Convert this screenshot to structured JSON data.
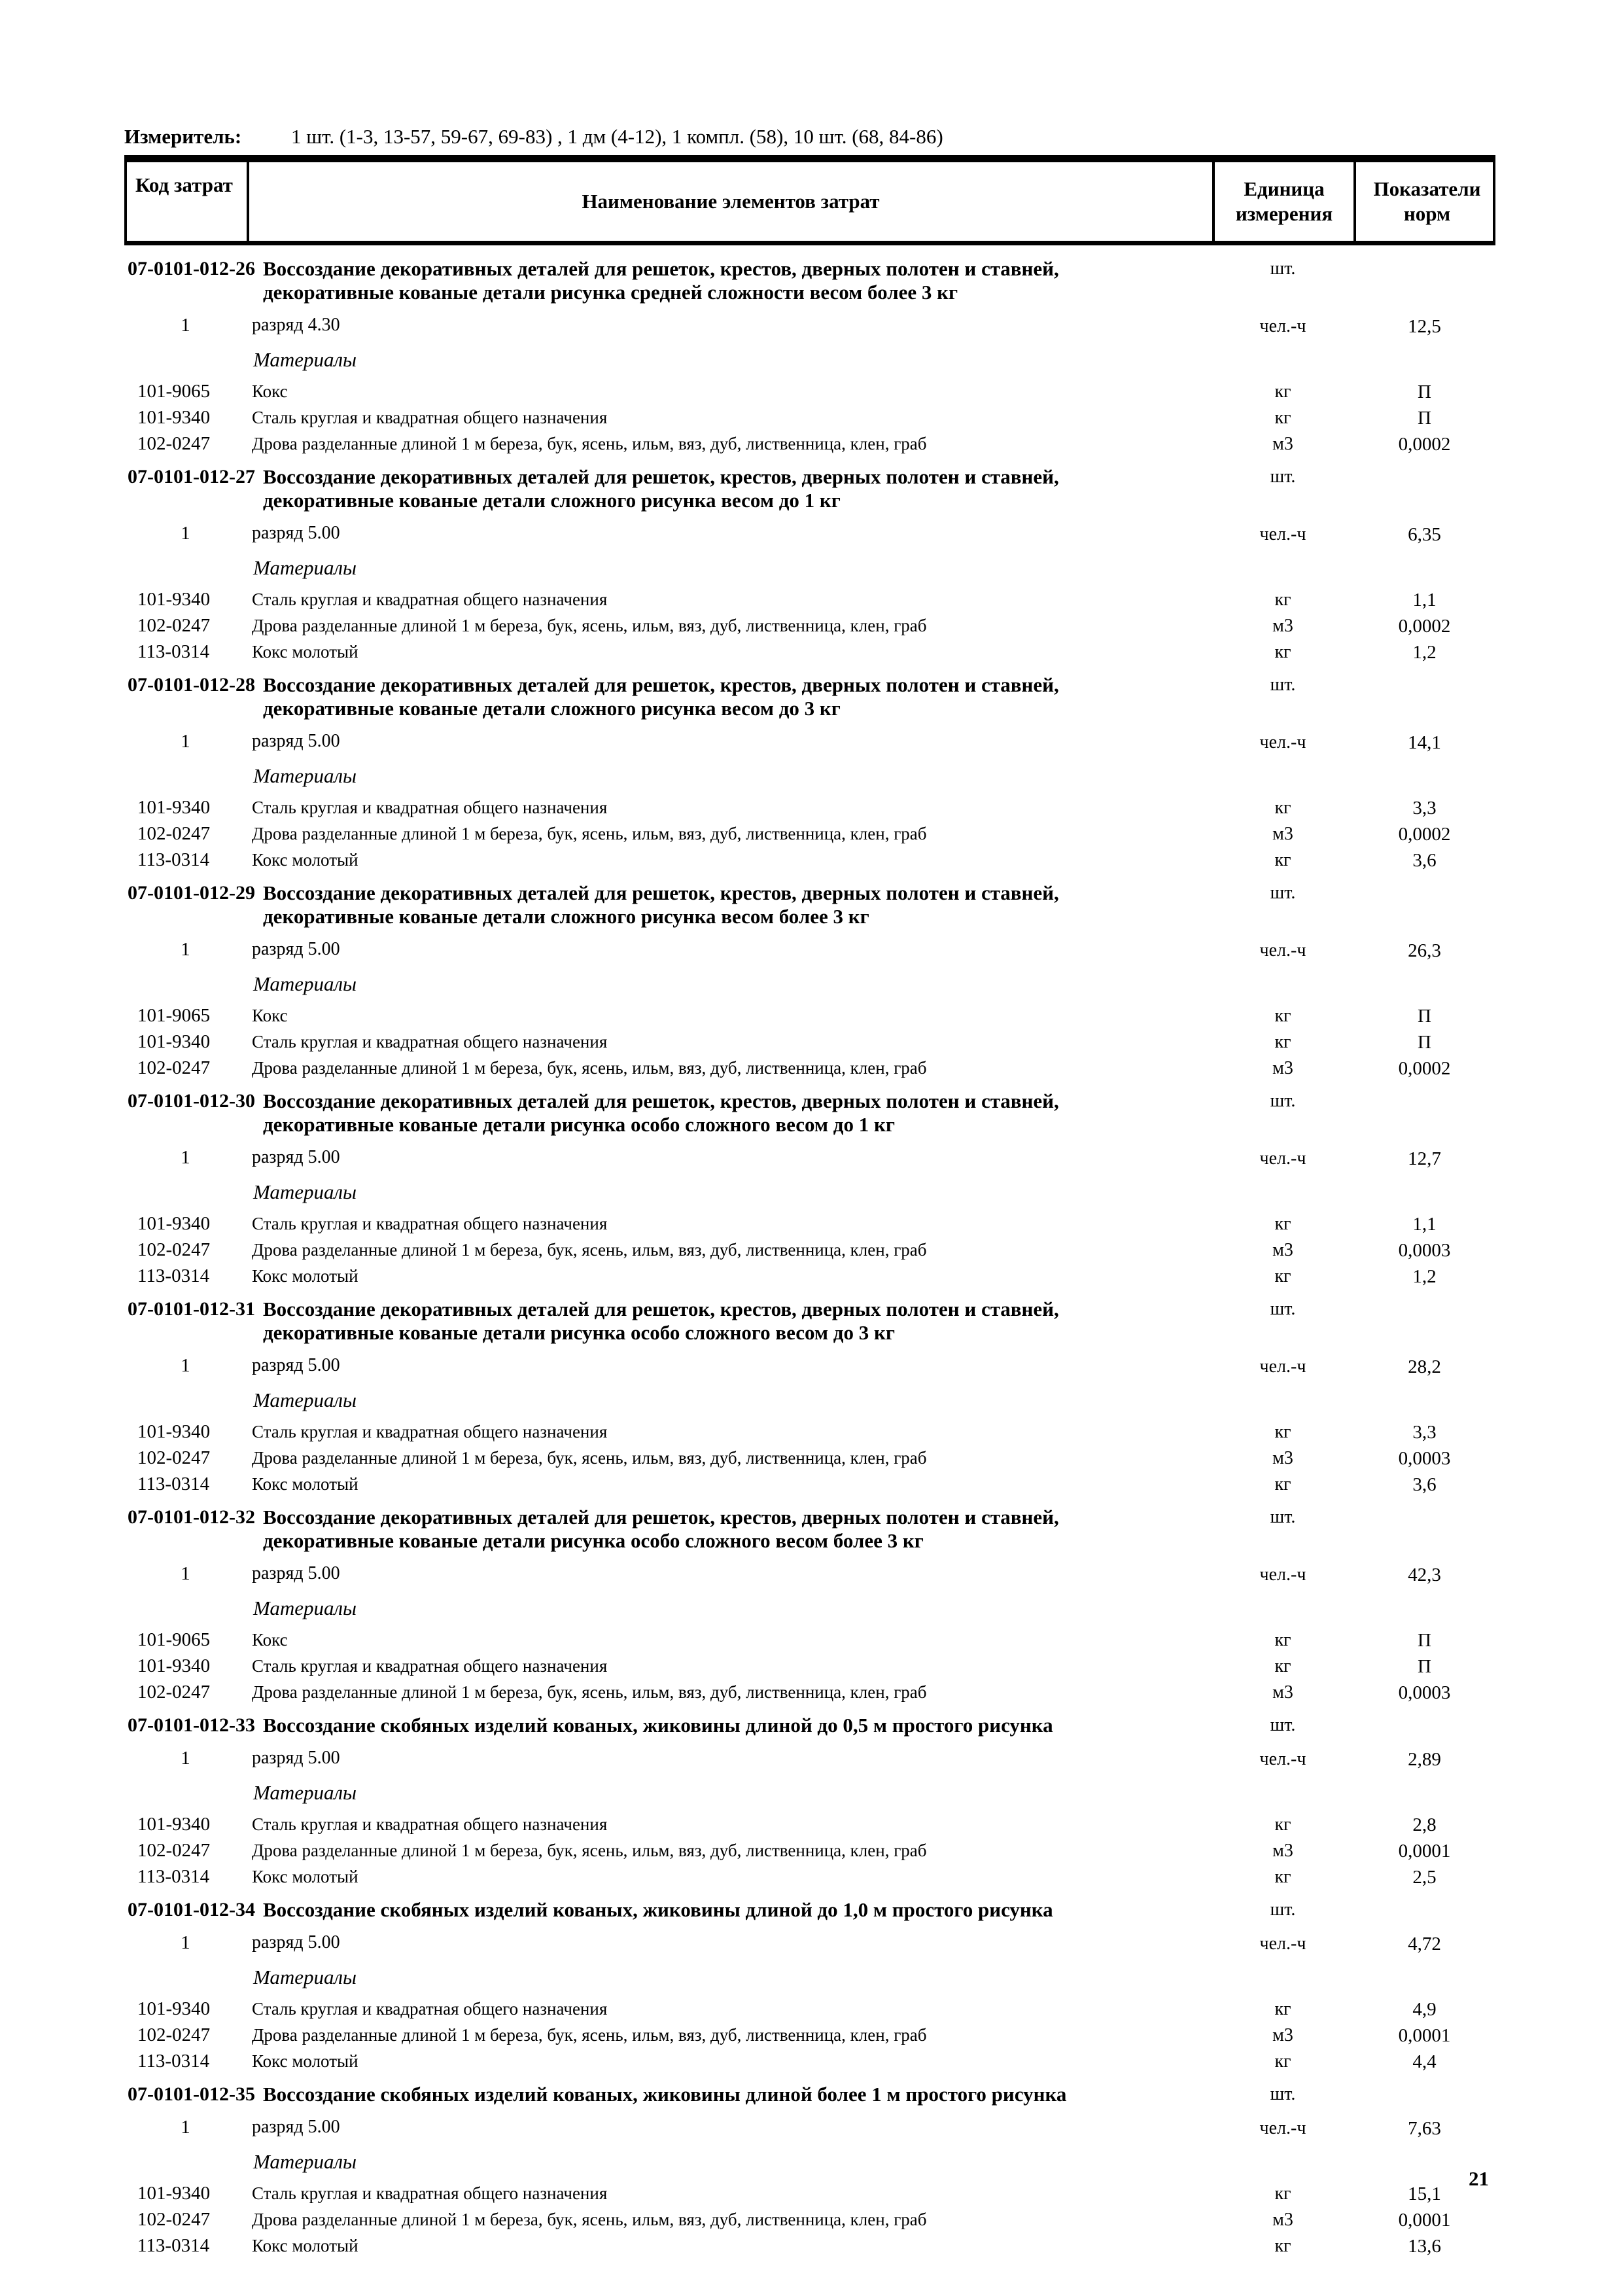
{
  "page": {
    "measure": {
      "label": "Измеритель:",
      "value": "1 шт. (1-3, 13-57, 59-67, 69-83) , 1 дм (4-12), 1 компл. (58), 10 шт. (68, 84-86)"
    },
    "page_number": "21"
  },
  "table": {
    "headers": {
      "code": "Код затрат",
      "name": "Наименование элементов затрат",
      "unit": "Единица измерения",
      "norm": "Показатели норм"
    },
    "sections": [
      {
        "code": "07-0101-012-26",
        "title_lines": [
          "Воссоздание декоративных деталей для решеток, крестов, дверных полотен и ставней,",
          "декоративные кованые детали рисунка средней сложности весом более 3 кг"
        ],
        "unit": "шт.",
        "labor": {
          "num": "1",
          "label": "разряд 4.30",
          "unit": "чел.-ч",
          "value": "12,5"
        },
        "materials_label": "Материалы",
        "materials": [
          {
            "code": "101-9065",
            "name": "Кокс",
            "unit": "кг",
            "value": "П"
          },
          {
            "code": "101-9340",
            "name": "Сталь круглая и квадратная общего назначения",
            "unit": "кг",
            "value": "П"
          },
          {
            "code": "102-0247",
            "name": "Дрова разделанные длиной 1 м береза, бук, ясень, ильм, вяз, дуб, лиственница, клен, граб",
            "unit": "м3",
            "value": "0,0002"
          }
        ]
      },
      {
        "code": "07-0101-012-27",
        "title_lines": [
          "Воссоздание декоративных деталей для решеток, крестов, дверных полотен и ставней,",
          "декоративные кованые детали сложного рисунка весом до 1 кг"
        ],
        "unit": "шт.",
        "labor": {
          "num": "1",
          "label": "разряд 5.00",
          "unit": "чел.-ч",
          "value": "6,35"
        },
        "materials_label": "Материалы",
        "materials": [
          {
            "code": "101-9340",
            "name": "Сталь круглая и квадратная общего назначения",
            "unit": "кг",
            "value": "1,1"
          },
          {
            "code": "102-0247",
            "name": "Дрова разделанные длиной 1 м береза, бук, ясень, ильм, вяз, дуб, лиственница, клен, граб",
            "unit": "м3",
            "value": "0,0002"
          },
          {
            "code": "113-0314",
            "name": "Кокс молотый",
            "unit": "кг",
            "value": "1,2"
          }
        ]
      },
      {
        "code": "07-0101-012-28",
        "title_lines": [
          "Воссоздание декоративных деталей для решеток, крестов, дверных полотен и ставней,",
          "декоративные кованые детали сложного рисунка весом до 3 кг"
        ],
        "unit": "шт.",
        "labor": {
          "num": "1",
          "label": "разряд 5.00",
          "unit": "чел.-ч",
          "value": "14,1"
        },
        "materials_label": "Материалы",
        "materials": [
          {
            "code": "101-9340",
            "name": "Сталь круглая и квадратная общего назначения",
            "unit": "кг",
            "value": "3,3"
          },
          {
            "code": "102-0247",
            "name": "Дрова разделанные длиной 1 м береза, бук, ясень, ильм, вяз, дуб, лиственница, клен, граб",
            "unit": "м3",
            "value": "0,0002"
          },
          {
            "code": "113-0314",
            "name": "Кокс молотый",
            "unit": "кг",
            "value": "3,6"
          }
        ]
      },
      {
        "code": "07-0101-012-29",
        "title_lines": [
          "Воссоздание декоративных деталей для решеток, крестов, дверных полотен и ставней,",
          "декоративные кованые детали сложного рисунка весом более 3 кг"
        ],
        "unit": "шт.",
        "labor": {
          "num": "1",
          "label": "разряд 5.00",
          "unit": "чел.-ч",
          "value": "26,3"
        },
        "materials_label": "Материалы",
        "materials": [
          {
            "code": "101-9065",
            "name": "Кокс",
            "unit": "кг",
            "value": "П"
          },
          {
            "code": "101-9340",
            "name": "Сталь круглая и квадратная общего назначения",
            "unit": "кг",
            "value": "П"
          },
          {
            "code": "102-0247",
            "name": "Дрова разделанные длиной 1 м береза, бук, ясень, ильм, вяз, дуб, лиственница, клен, граб",
            "unit": "м3",
            "value": "0,0002"
          }
        ]
      },
      {
        "code": "07-0101-012-30",
        "title_lines": [
          "Воссоздание декоративных деталей для решеток, крестов, дверных полотен и ставней,",
          "декоративные кованые детали рисунка особо сложного весом до 1 кг"
        ],
        "unit": "шт.",
        "labor": {
          "num": "1",
          "label": "разряд 5.00",
          "unit": "чел.-ч",
          "value": "12,7"
        },
        "materials_label": "Материалы",
        "materials": [
          {
            "code": "101-9340",
            "name": "Сталь круглая и квадратная общего назначения",
            "unit": "кг",
            "value": "1,1"
          },
          {
            "code": "102-0247",
            "name": "Дрова разделанные длиной 1 м береза, бук, ясень, ильм, вяз, дуб, лиственница, клен, граб",
            "unit": "м3",
            "value": "0,0003"
          },
          {
            "code": "113-0314",
            "name": "Кокс молотый",
            "unit": "кг",
            "value": "1,2"
          }
        ]
      },
      {
        "code": "07-0101-012-31",
        "title_lines": [
          "Воссоздание декоративных деталей для решеток, крестов, дверных полотен и ставней,",
          "декоративные кованые детали рисунка особо сложного весом до 3 кг"
        ],
        "unit": "шт.",
        "labor": {
          "num": "1",
          "label": "разряд 5.00",
          "unit": "чел.-ч",
          "value": "28,2"
        },
        "materials_label": "Материалы",
        "materials": [
          {
            "code": "101-9340",
            "name": "Сталь круглая и квадратная общего назначения",
            "unit": "кг",
            "value": "3,3"
          },
          {
            "code": "102-0247",
            "name": "Дрова разделанные длиной 1 м береза, бук, ясень, ильм, вяз, дуб, лиственница, клен, граб",
            "unit": "м3",
            "value": "0,0003"
          },
          {
            "code": "113-0314",
            "name": "Кокс молотый",
            "unit": "кг",
            "value": "3,6"
          }
        ]
      },
      {
        "code": "07-0101-012-32",
        "title_lines": [
          "Воссоздание декоративных деталей для решеток, крестов, дверных полотен и ставней,",
          "декоративные кованые детали рисунка особо сложного весом более 3 кг"
        ],
        "unit": "шт.",
        "labor": {
          "num": "1",
          "label": "разряд 5.00",
          "unit": "чел.-ч",
          "value": "42,3"
        },
        "materials_label": "Материалы",
        "materials": [
          {
            "code": "101-9065",
            "name": "Кокс",
            "unit": "кг",
            "value": "П"
          },
          {
            "code": "101-9340",
            "name": "Сталь круглая и квадратная общего назначения",
            "unit": "кг",
            "value": "П"
          },
          {
            "code": "102-0247",
            "name": "Дрова разделанные длиной 1 м береза, бук, ясень, ильм, вяз, дуб, лиственница, клен, граб",
            "unit": "м3",
            "value": "0,0003"
          }
        ]
      },
      {
        "code": "07-0101-012-33",
        "title_lines": [
          "Воссоздание скобяных изделий кованых, жиковины длиной до 0,5 м простого рисунка"
        ],
        "unit": "шт.",
        "labor": {
          "num": "1",
          "label": "разряд 5.00",
          "unit": "чел.-ч",
          "value": "2,89"
        },
        "materials_label": "Материалы",
        "materials": [
          {
            "code": "101-9340",
            "name": "Сталь круглая и квадратная общего назначения",
            "unit": "кг",
            "value": "2,8"
          },
          {
            "code": "102-0247",
            "name": "Дрова разделанные длиной 1 м береза, бук, ясень, ильм, вяз, дуб, лиственница, клен, граб",
            "unit": "м3",
            "value": "0,0001"
          },
          {
            "code": "113-0314",
            "name": "Кокс молотый",
            "unit": "кг",
            "value": "2,5"
          }
        ]
      },
      {
        "code": "07-0101-012-34",
        "title_lines": [
          "Воссоздание скобяных изделий кованых, жиковины длиной до 1,0 м простого рисунка"
        ],
        "unit": "шт.",
        "labor": {
          "num": "1",
          "label": "разряд 5.00",
          "unit": "чел.-ч",
          "value": "4,72"
        },
        "materials_label": "Материалы",
        "materials": [
          {
            "code": "101-9340",
            "name": "Сталь круглая и квадратная общего назначения",
            "unit": "кг",
            "value": "4,9"
          },
          {
            "code": "102-0247",
            "name": "Дрова разделанные длиной 1 м береза, бук, ясень, ильм, вяз, дуб, лиственница, клен, граб",
            "unit": "м3",
            "value": "0,0001"
          },
          {
            "code": "113-0314",
            "name": "Кокс молотый",
            "unit": "кг",
            "value": "4,4"
          }
        ]
      },
      {
        "code": "07-0101-012-35",
        "title_lines": [
          "Воссоздание скобяных изделий кованых, жиковины длиной более 1 м простого рисунка"
        ],
        "unit": "шт.",
        "labor": {
          "num": "1",
          "label": "разряд 5.00",
          "unit": "чел.-ч",
          "value": "7,63"
        },
        "materials_label": "Материалы",
        "materials": [
          {
            "code": "101-9340",
            "name": "Сталь круглая и квадратная общего назначения",
            "unit": "кг",
            "value": "15,1"
          },
          {
            "code": "102-0247",
            "name": "Дрова разделанные длиной 1 м береза, бук, ясень, ильм, вяз, дуб, лиственница, клен, граб",
            "unit": "м3",
            "value": "0,0001"
          },
          {
            "code": "113-0314",
            "name": "Кокс молотый",
            "unit": "кг",
            "value": "13,6"
          }
        ]
      }
    ]
  }
}
